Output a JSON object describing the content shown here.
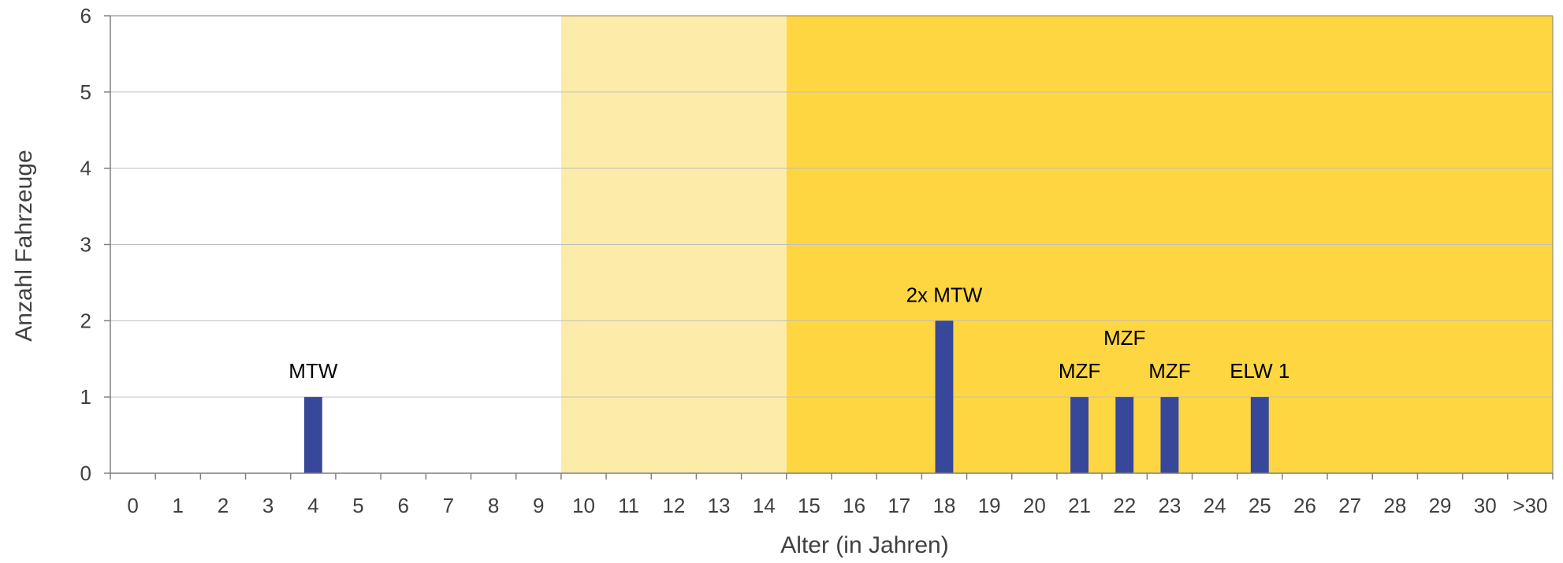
{
  "chart_data": {
    "type": "bar",
    "categories": [
      "0",
      "1",
      "2",
      "3",
      "4",
      "5",
      "6",
      "7",
      "8",
      "9",
      "10",
      "11",
      "12",
      "13",
      "14",
      "15",
      "16",
      "17",
      "18",
      "19",
      "20",
      "21",
      "22",
      "23",
      "24",
      "25",
      "26",
      "27",
      "28",
      "29",
      "30",
      ">30"
    ],
    "values": [
      0,
      0,
      0,
      0,
      1,
      0,
      0,
      0,
      0,
      0,
      0,
      0,
      0,
      0,
      0,
      0,
      0,
      0,
      2,
      0,
      0,
      1,
      1,
      1,
      0,
      1,
      0,
      0,
      0,
      0,
      0,
      0
    ],
    "bar_labels": [
      {
        "category": "4",
        "text": "MTW"
      },
      {
        "category": "18",
        "text": "2x MTW"
      },
      {
        "category": "21",
        "text": "MZF"
      },
      {
        "category": "22",
        "text": "MZF"
      },
      {
        "category": "23",
        "text": "MZF"
      },
      {
        "category": "25",
        "text": "ELW 1"
      }
    ],
    "xlabel": "Alter (in Jahren)",
    "ylabel": "Anzahl Fahrzeuge",
    "ylim": [
      0,
      6
    ],
    "yticks": [
      0,
      1,
      2,
      3,
      4,
      5,
      6
    ],
    "grid": true,
    "bands": [
      {
        "from_category": "10",
        "to_category": "14",
        "color": "#FDEBA9"
      },
      {
        "from_category": "15",
        "to_category": ">30",
        "color": "#FED642"
      }
    ],
    "colors": {
      "bar": "#37479A",
      "grid": "#BFBFBF",
      "axis": "#7F7F7F"
    }
  }
}
